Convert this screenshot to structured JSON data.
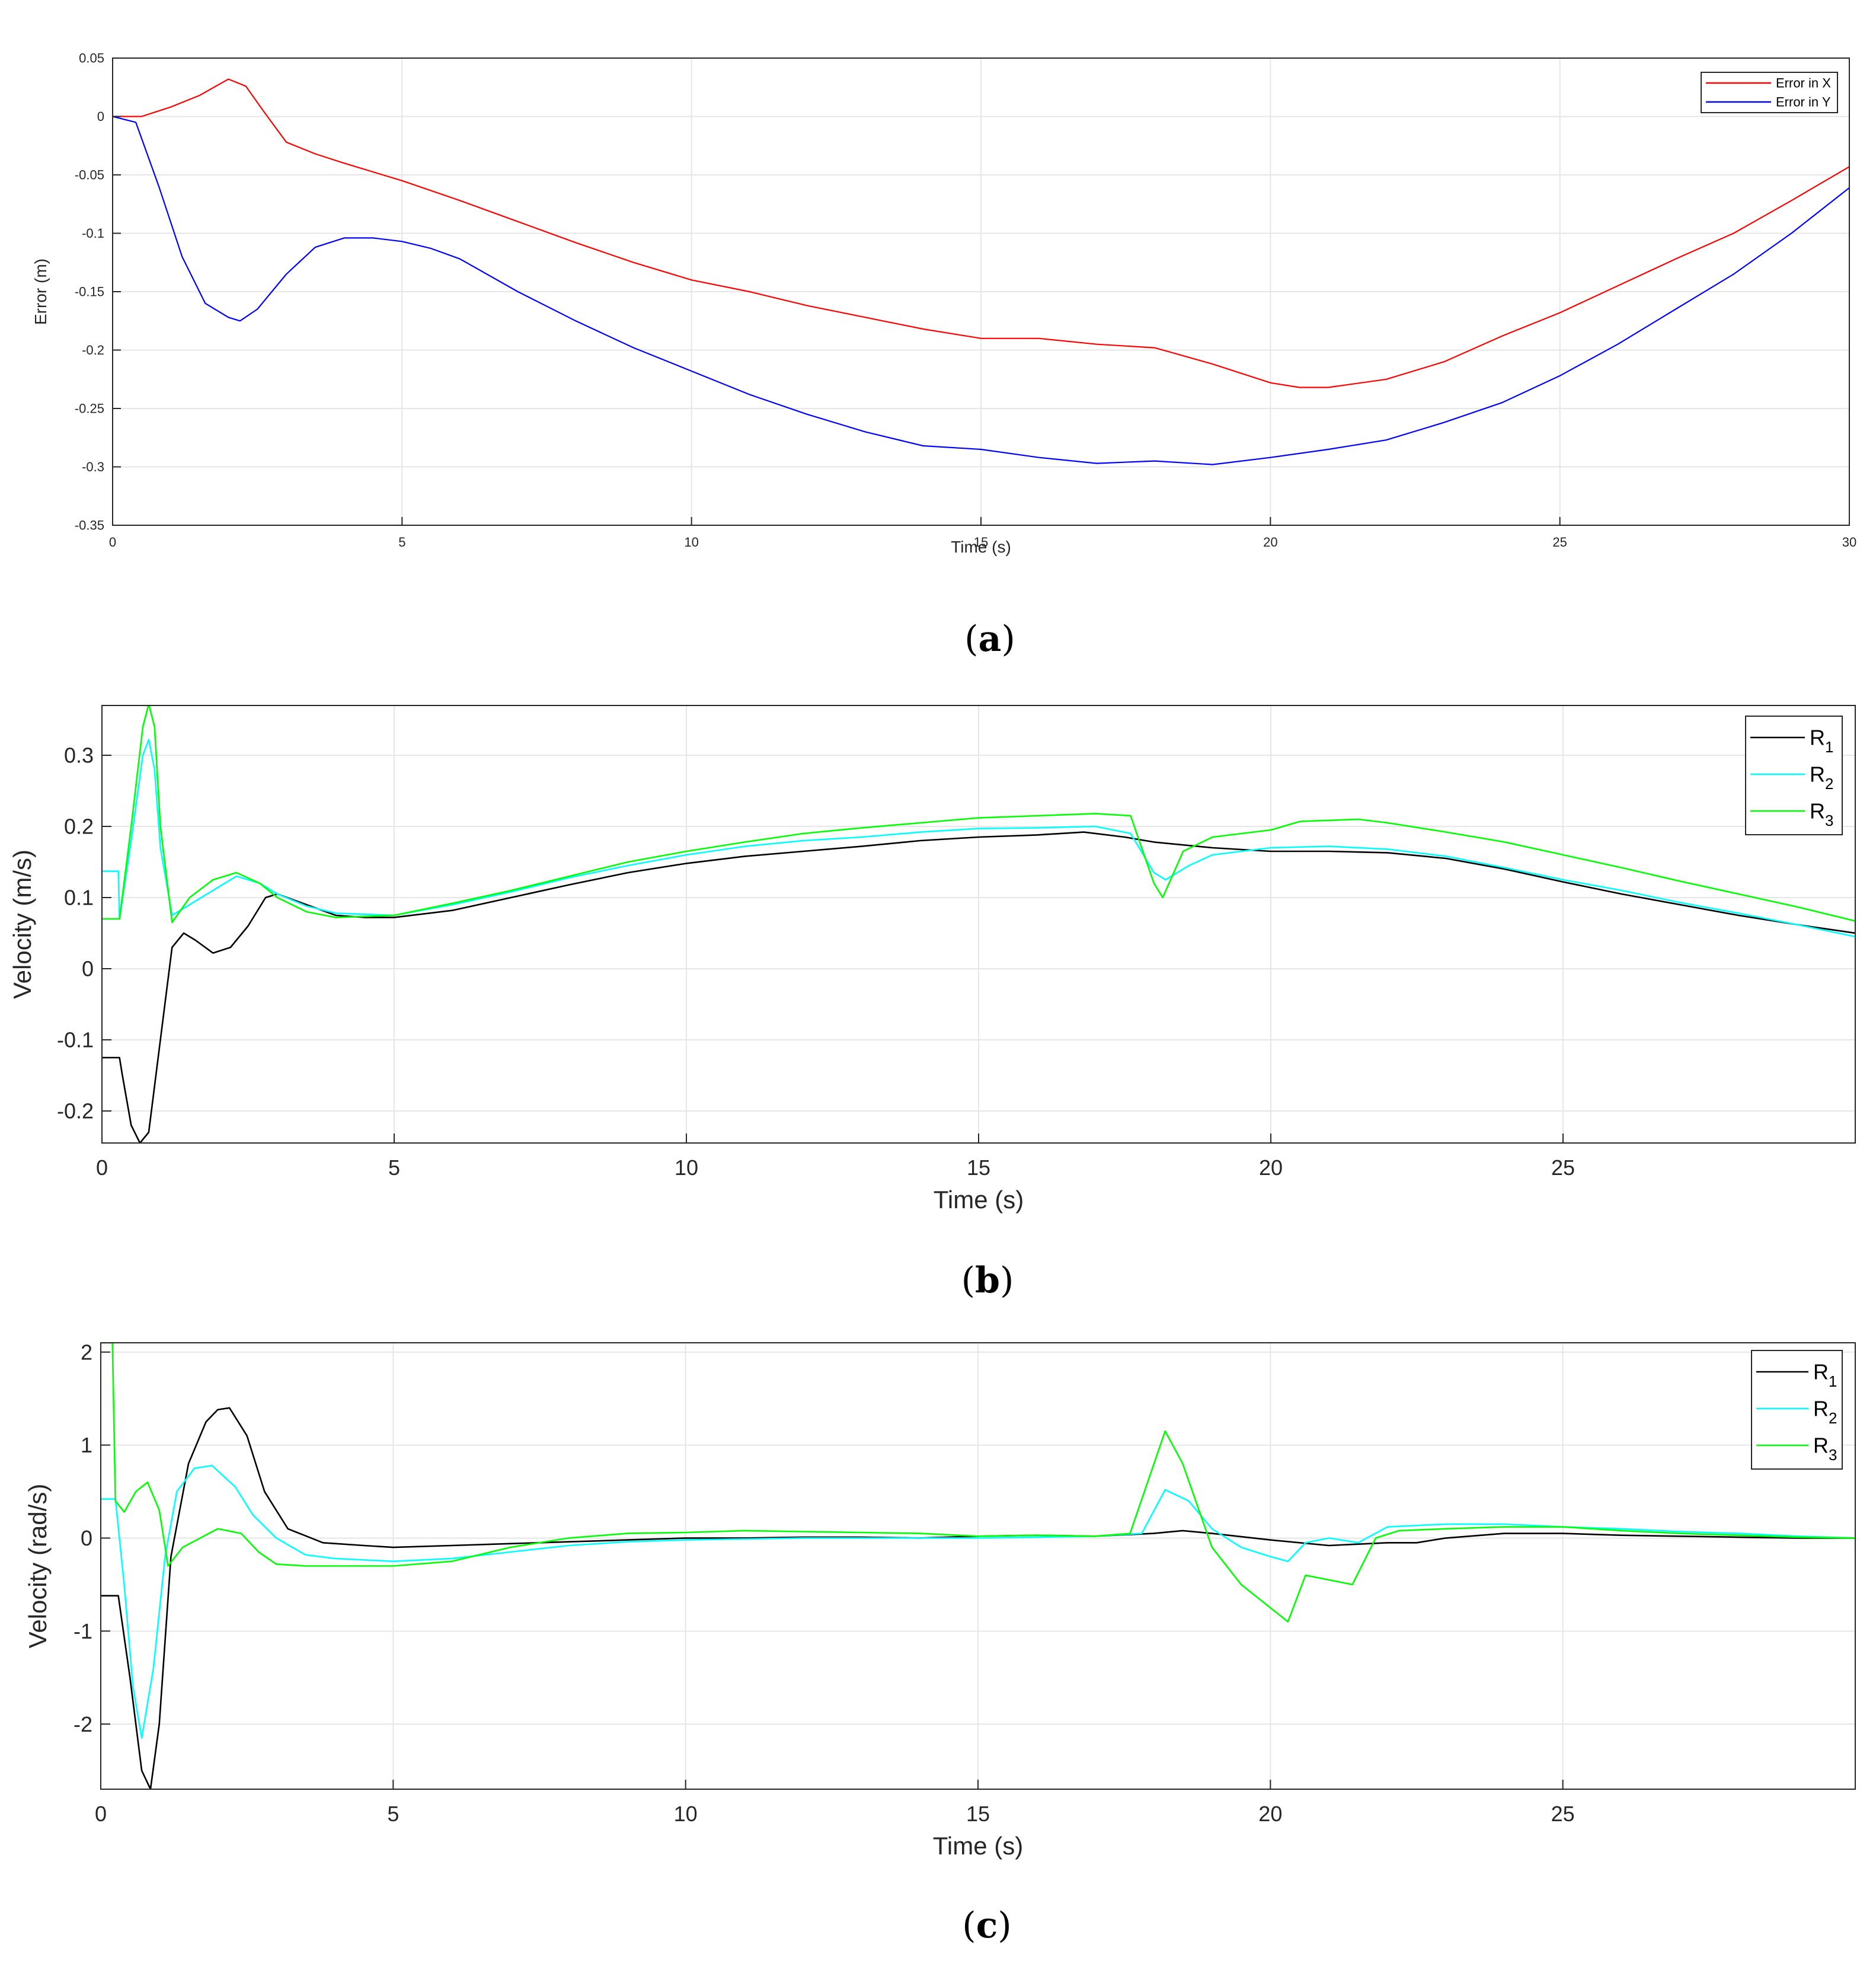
{
  "chart_data": [
    {
      "id": "a",
      "type": "line",
      "caption_letter": "a",
      "xlabel": "Time (s)",
      "ylabel": "Error (m)",
      "xlim": [
        0,
        30
      ],
      "ylim": [
        -0.35,
        0.05
      ],
      "xticks": [
        0,
        5,
        10,
        15,
        20,
        25,
        30
      ],
      "yticks": [
        -0.35,
        -0.3,
        -0.25,
        -0.2,
        -0.15,
        -0.1,
        -0.05,
        0,
        0.05
      ],
      "ytick_labels": [
        "-0.35",
        "-0.3",
        "-0.25",
        "-0.2",
        "-0.15",
        "-0.1",
        "-0.05",
        "0",
        "0.05"
      ],
      "grid": true,
      "legend_position": "top-right",
      "series": [
        {
          "name": "Error in X",
          "color": "#ff0000",
          "x": [
            0,
            0.5,
            1.0,
            1.5,
            2.0,
            2.3,
            2.6,
            3.0,
            3.5,
            4.0,
            5.0,
            6.0,
            7.0,
            8.0,
            9.0,
            10.0,
            11.0,
            12.0,
            13.0,
            14.0,
            15.0,
            16.0,
            17.0,
            18.0,
            19.0,
            20.0,
            20.5,
            21.0,
            22.0,
            23.0,
            24.0,
            25.0,
            26.0,
            27.0,
            28.0,
            29.0,
            30.0
          ],
          "values": [
            0,
            0,
            0.008,
            0.018,
            0.032,
            0.026,
            0.005,
            -0.022,
            -0.032,
            -0.04,
            -0.055,
            -0.072,
            -0.09,
            -0.108,
            -0.125,
            -0.14,
            -0.15,
            -0.162,
            -0.172,
            -0.182,
            -0.19,
            -0.19,
            -0.195,
            -0.198,
            -0.212,
            -0.228,
            -0.232,
            -0.232,
            -0.225,
            -0.21,
            -0.188,
            -0.168,
            -0.145,
            -0.122,
            -0.1,
            -0.072,
            -0.043
          ]
        },
        {
          "name": "Error in Y",
          "color": "#0000ff",
          "x": [
            0,
            0.4,
            0.8,
            1.2,
            1.6,
            2.0,
            2.2,
            2.5,
            3.0,
            3.5,
            4.0,
            4.5,
            5.0,
            5.5,
            6.0,
            7.0,
            8.0,
            9.0,
            10.0,
            11.0,
            12.0,
            13.0,
            14.0,
            15.0,
            16.0,
            17.0,
            18.0,
            19.0,
            20.0,
            21.0,
            22.0,
            23.0,
            24.0,
            25.0,
            26.0,
            27.0,
            28.0,
            29.0,
            30.0
          ],
          "values": [
            0,
            -0.005,
            -0.06,
            -0.12,
            -0.16,
            -0.172,
            -0.175,
            -0.165,
            -0.135,
            -0.112,
            -0.104,
            -0.104,
            -0.107,
            -0.113,
            -0.122,
            -0.15,
            -0.175,
            -0.198,
            -0.218,
            -0.238,
            -0.255,
            -0.27,
            -0.282,
            -0.285,
            -0.292,
            -0.297,
            -0.295,
            -0.298,
            -0.292,
            -0.285,
            -0.277,
            -0.262,
            -0.245,
            -0.222,
            -0.195,
            -0.165,
            -0.135,
            -0.1,
            -0.061
          ]
        }
      ]
    },
    {
      "id": "b",
      "type": "line",
      "caption_letter": "b",
      "xlabel": "Time (s)",
      "ylabel": "Velocity (m/s)",
      "xlim": [
        0,
        30
      ],
      "ylim": [
        -0.245,
        0.37
      ],
      "xticks": [
        0,
        5,
        10,
        15,
        20,
        25
      ],
      "yticks": [
        -0.2,
        -0.1,
        0,
        0.1,
        0.2,
        0.3
      ],
      "ytick_labels": [
        "-0.2",
        "-0.1",
        "0",
        "0.1",
        "0.2",
        "0.3"
      ],
      "grid": true,
      "legend_position": "top-right",
      "series": [
        {
          "name": "R",
          "sub": "1",
          "color": "#000000",
          "x": [
            0,
            0.3,
            0.35,
            0.5,
            0.65,
            0.8,
            1.0,
            1.2,
            1.4,
            1.6,
            1.9,
            2.2,
            2.5,
            2.8,
            3.0,
            3.5,
            4.0,
            4.5,
            5.0,
            6.0,
            7.0,
            8.0,
            9.0,
            10.0,
            11.0,
            12.0,
            13.0,
            14.0,
            15.0,
            16.0,
            16.8,
            17.5,
            18.0,
            19.0,
            20.0,
            21.0,
            22.0,
            23.0,
            24.0,
            25.0,
            26.0,
            27.0,
            28.0,
            29.0,
            30.0
          ],
          "values": [
            -0.125,
            -0.125,
            -0.15,
            -0.22,
            -0.245,
            -0.23,
            -0.1,
            0.03,
            0.05,
            0.04,
            0.022,
            0.03,
            0.06,
            0.1,
            0.105,
            0.09,
            0.075,
            0.072,
            0.072,
            0.082,
            0.1,
            0.118,
            0.135,
            0.148,
            0.158,
            0.165,
            0.172,
            0.18,
            0.185,
            0.188,
            0.192,
            0.185,
            0.178,
            0.17,
            0.165,
            0.165,
            0.163,
            0.155,
            0.14,
            0.122,
            0.105,
            0.09,
            0.075,
            0.062,
            0.05
          ]
        },
        {
          "name": "R",
          "sub": "2",
          "color": "#00ffff",
          "x": [
            0,
            0.28,
            0.3,
            0.5,
            0.7,
            0.8,
            0.9,
            1.0,
            1.2,
            1.5,
            1.9,
            2.3,
            2.7,
            3.0,
            3.5,
            4.0,
            5.0,
            6.0,
            7.0,
            8.0,
            9.0,
            10.0,
            11.0,
            12.0,
            13.0,
            14.0,
            15.0,
            16.0,
            17.0,
            17.6,
            18.0,
            18.2,
            18.6,
            19.0,
            20.0,
            21.0,
            22.0,
            23.0,
            24.0,
            25.0,
            26.0,
            27.0,
            28.0,
            29.0,
            30.0
          ],
          "values": [
            0.137,
            0.137,
            0.07,
            0.18,
            0.3,
            0.322,
            0.28,
            0.17,
            0.075,
            0.09,
            0.11,
            0.13,
            0.12,
            0.105,
            0.088,
            0.078,
            0.075,
            0.09,
            0.108,
            0.128,
            0.145,
            0.16,
            0.172,
            0.18,
            0.185,
            0.192,
            0.197,
            0.198,
            0.2,
            0.19,
            0.135,
            0.125,
            0.145,
            0.16,
            0.17,
            0.172,
            0.168,
            0.158,
            0.142,
            0.125,
            0.11,
            0.093,
            0.078,
            0.062,
            0.045
          ]
        },
        {
          "name": "R",
          "sub": "3",
          "color": "#00ff00",
          "x": [
            0,
            0.3,
            0.5,
            0.7,
            0.8,
            0.9,
            1.0,
            1.2,
            1.5,
            1.9,
            2.3,
            2.7,
            3.0,
            3.5,
            4.0,
            5.0,
            6.0,
            7.0,
            8.0,
            9.0,
            10.0,
            11.0,
            12.0,
            13.0,
            14.0,
            15.0,
            16.0,
            17.0,
            17.6,
            18.0,
            18.15,
            18.5,
            19.0,
            20.0,
            20.5,
            21.5,
            22.0,
            23.0,
            24.0,
            25.0,
            26.0,
            27.0,
            28.0,
            29.0,
            30.0
          ],
          "values": [
            0.07,
            0.07,
            0.2,
            0.34,
            0.372,
            0.34,
            0.2,
            0.065,
            0.1,
            0.125,
            0.135,
            0.12,
            0.1,
            0.08,
            0.072,
            0.075,
            0.092,
            0.11,
            0.13,
            0.15,
            0.165,
            0.178,
            0.19,
            0.198,
            0.205,
            0.212,
            0.215,
            0.218,
            0.215,
            0.12,
            0.1,
            0.165,
            0.185,
            0.195,
            0.207,
            0.21,
            0.205,
            0.192,
            0.178,
            0.16,
            0.142,
            0.123,
            0.105,
            0.087,
            0.067
          ]
        }
      ]
    },
    {
      "id": "c",
      "type": "line",
      "caption_letter": "c",
      "xlabel": "Time (s)",
      "ylabel": "Velocity (rad/s)",
      "xlim": [
        0,
        30
      ],
      "ylim": [
        -2.7,
        2.1
      ],
      "xticks": [
        0,
        5,
        10,
        15,
        20,
        25
      ],
      "yticks": [
        -2,
        -1,
        0,
        1,
        2
      ],
      "ytick_labels": [
        "-2",
        "-1",
        "0",
        "1",
        "2"
      ],
      "grid": true,
      "legend_position": "top-right",
      "series": [
        {
          "name": "R",
          "sub": "1",
          "color": "#000000",
          "x": [
            0,
            0.3,
            0.5,
            0.7,
            0.85,
            1.0,
            1.2,
            1.5,
            1.8,
            2.0,
            2.2,
            2.5,
            2.8,
            3.2,
            3.8,
            4.5,
            5.0,
            6.0,
            7.0,
            8.0,
            9.0,
            10.0,
            11.0,
            12.0,
            13.0,
            14.0,
            15.0,
            16.0,
            17.0,
            18.0,
            18.5,
            19.0,
            20.0,
            21.0,
            22.0,
            22.5,
            23.0,
            24.0,
            25.0,
            26.0,
            27.0,
            28.0,
            29.0,
            30.0
          ],
          "values": [
            -0.62,
            -0.62,
            -1.5,
            -2.5,
            -2.7,
            -2.0,
            -0.2,
            0.8,
            1.25,
            1.38,
            1.4,
            1.1,
            0.5,
            0.1,
            -0.05,
            -0.08,
            -0.1,
            -0.08,
            -0.06,
            -0.04,
            -0.02,
            0.0,
            0.0,
            0.01,
            0.01,
            0.0,
            0.02,
            0.03,
            0.02,
            0.05,
            0.08,
            0.05,
            -0.02,
            -0.08,
            -0.05,
            -0.05,
            0.0,
            0.05,
            0.05,
            0.03,
            0.02,
            0.01,
            0.0,
            0.0
          ]
        },
        {
          "name": "R",
          "sub": "2",
          "color": "#00ffff",
          "x": [
            0,
            0.25,
            0.4,
            0.55,
            0.7,
            0.9,
            1.1,
            1.3,
            1.6,
            1.9,
            2.3,
            2.6,
            3.0,
            3.5,
            4.0,
            5.0,
            6.0,
            7.0,
            8.0,
            9.0,
            10.0,
            11.0,
            12.0,
            13.0,
            14.0,
            15.0,
            16.0,
            17.0,
            17.8,
            18.2,
            18.6,
            19.0,
            19.5,
            20.0,
            20.3,
            20.6,
            21.0,
            21.5,
            22.0,
            23.0,
            24.0,
            25.0,
            26.0,
            27.0,
            28.0,
            29.0,
            30.0
          ],
          "values": [
            0.42,
            0.42,
            -0.5,
            -1.6,
            -2.15,
            -1.4,
            -0.2,
            0.5,
            0.75,
            0.78,
            0.55,
            0.25,
            0.0,
            -0.18,
            -0.22,
            -0.25,
            -0.22,
            -0.15,
            -0.08,
            -0.04,
            -0.02,
            -0.01,
            0.0,
            0.0,
            0.0,
            0.0,
            0.01,
            0.02,
            0.05,
            0.52,
            0.4,
            0.1,
            -0.1,
            -0.2,
            -0.25,
            -0.05,
            0.0,
            -0.05,
            0.12,
            0.15,
            0.15,
            0.12,
            0.1,
            0.07,
            0.05,
            0.02,
            0.0
          ]
        },
        {
          "name": "R",
          "sub": "3",
          "color": "#00ff00",
          "x": [
            0,
            0.2,
            0.25,
            0.4,
            0.6,
            0.8,
            1.0,
            1.15,
            1.4,
            1.7,
            2.0,
            2.4,
            2.7,
            3.0,
            3.5,
            4.0,
            5.0,
            6.0,
            7.0,
            8.0,
            9.0,
            10.0,
            11.0,
            12.0,
            13.0,
            14.0,
            15.0,
            16.0,
            17.0,
            17.6,
            17.9,
            18.2,
            18.5,
            19.0,
            19.5,
            20.0,
            20.3,
            20.6,
            21.0,
            21.4,
            21.8,
            22.2,
            23.0,
            24.0,
            25.0,
            26.0,
            27.0,
            28.0,
            29.0,
            30.0
          ],
          "values": [
            2.1,
            2.1,
            0.4,
            0.28,
            0.5,
            0.6,
            0.3,
            -0.3,
            -0.1,
            0.0,
            0.1,
            0.05,
            -0.15,
            -0.28,
            -0.3,
            -0.3,
            -0.3,
            -0.25,
            -0.1,
            0.0,
            0.05,
            0.06,
            0.08,
            0.07,
            0.06,
            0.05,
            0.02,
            0.03,
            0.02,
            0.05,
            0.6,
            1.15,
            0.8,
            -0.1,
            -0.5,
            -0.75,
            -0.9,
            -0.4,
            -0.45,
            -0.5,
            0.0,
            0.08,
            0.1,
            0.12,
            0.12,
            0.08,
            0.05,
            0.03,
            0.01,
            0.0
          ]
        }
      ]
    }
  ]
}
